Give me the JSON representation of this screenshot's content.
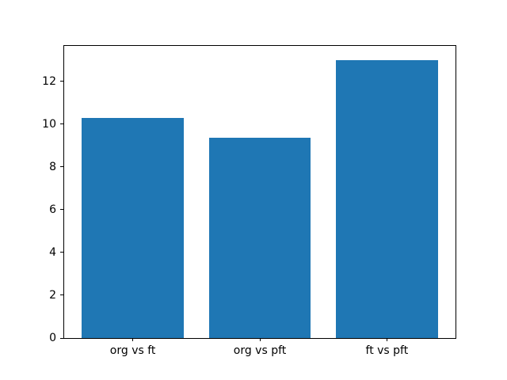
{
  "chart_data": {
    "type": "bar",
    "categories": [
      "org vs ft",
      "org vs pft",
      "ft vs pft"
    ],
    "values": [
      10.3,
      9.35,
      13.0
    ],
    "title": "",
    "xlabel": "",
    "ylabel": "",
    "ylim": [
      0,
      13.65
    ],
    "yticks": [
      0,
      2,
      4,
      6,
      8,
      10,
      12
    ],
    "xlim": [
      -0.54,
      2.54
    ],
    "bar_centers": [
      0,
      1,
      2
    ],
    "bar_width": 0.8,
    "bar_color": "#1f77b4",
    "axis_color": "#000000",
    "background_color": "#ffffff",
    "grid": false,
    "legend": null
  }
}
